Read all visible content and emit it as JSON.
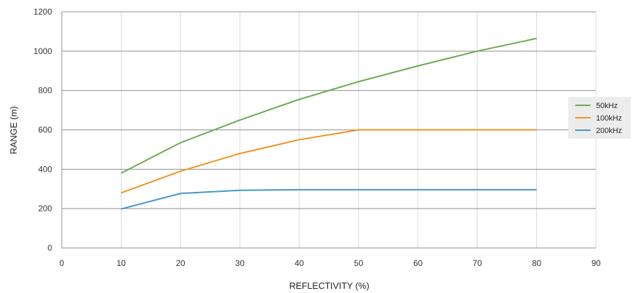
{
  "chart_data": {
    "type": "line",
    "xlabel": "REFLECTIVITY (%)",
    "ylabel": "RANGE (m)",
    "xlim": [
      0,
      90
    ],
    "ylim": [
      0,
      1200
    ],
    "x_ticks": [
      0,
      10,
      20,
      30,
      40,
      50,
      60,
      70,
      80,
      90
    ],
    "y_ticks": [
      0,
      200,
      400,
      600,
      800,
      1000,
      1200
    ],
    "x_tick_labels": [
      "0",
      "10",
      "20",
      "30",
      "40",
      "50",
      "60",
      "70",
      "80",
      "90"
    ],
    "y_tick_labels": [
      "0",
      "200",
      "400",
      "600",
      "800",
      "1000",
      "1200"
    ],
    "grid": true,
    "legend_position": "right",
    "x": [
      10,
      20,
      30,
      40,
      50,
      60,
      70,
      80
    ],
    "series": [
      {
        "name": "50kHz",
        "color": "#6aa84f",
        "values": [
          380,
          535,
          650,
          755,
          845,
          925,
          1000,
          1065
        ]
      },
      {
        "name": "100kHz",
        "color": "#f0921e",
        "values": [
          280,
          390,
          480,
          550,
          600,
          600,
          600,
          600
        ]
      },
      {
        "name": "200kHz",
        "color": "#3e95cd",
        "values": [
          198,
          277,
          293,
          296,
          296,
          296,
          296,
          296
        ]
      }
    ]
  }
}
